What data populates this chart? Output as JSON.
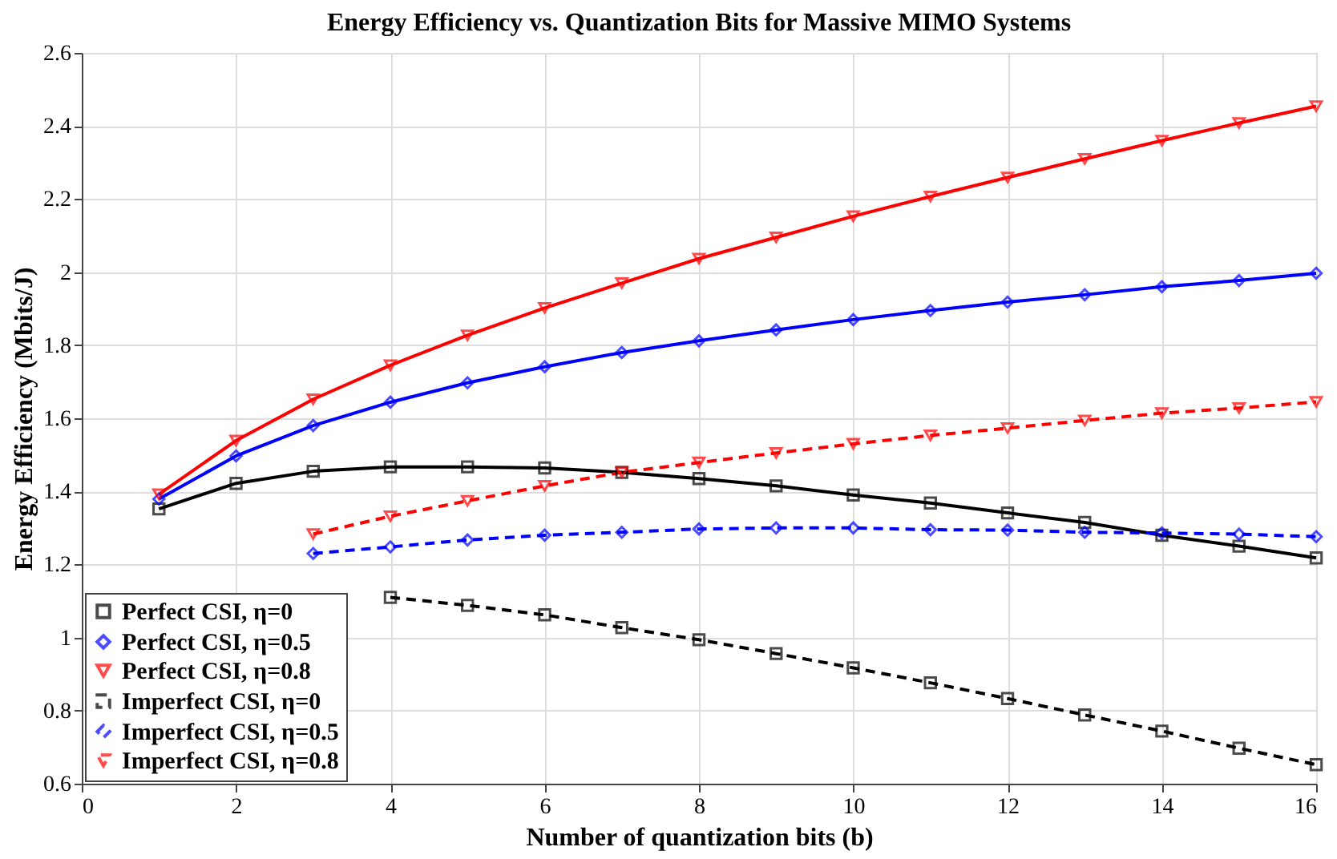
{
  "chart_data": {
    "type": "line",
    "title": "Energy Efficiency vs. Quantization Bits for Massive MIMO Systems",
    "xlabel": "Number of quantization bits (b)",
    "ylabel": "Energy Efficiency (Mbits/J)",
    "x": [
      1,
      2,
      3,
      4,
      5,
      6,
      7,
      8,
      9,
      10,
      11,
      12,
      13,
      14,
      15,
      16
    ],
    "xlim": [
      0,
      16
    ],
    "xticks": [
      0,
      2,
      4,
      6,
      8,
      10,
      12,
      14,
      16
    ],
    "ylim": [
      0.6,
      2.6
    ],
    "yticks": [
      0.6,
      0.8,
      1,
      1.2,
      1.4,
      1.6,
      1.8,
      2,
      2.2,
      2.4,
      2.6
    ],
    "grid": true,
    "legend": "bottom left",
    "series": [
      {
        "name": "Perfect CSI, η=0",
        "color": "#000000",
        "marker": "square",
        "line_style": "solid",
        "values": [
          1.352,
          1.422,
          1.455,
          1.467,
          1.467,
          1.464,
          1.452,
          1.435,
          1.415,
          1.39,
          1.368,
          1.341,
          1.315,
          1.28,
          1.25,
          1.218
        ]
      },
      {
        "name": "Perfect CSI, η=0.5",
        "color": "#0000ff",
        "marker": "diamond",
        "line_style": "solid",
        "values": [
          1.379,
          1.497,
          1.58,
          1.644,
          1.697,
          1.741,
          1.78,
          1.812,
          1.842,
          1.87,
          1.895,
          1.918,
          1.938,
          1.96,
          1.977,
          1.997
        ]
      },
      {
        "name": "Perfect CSI, η=0.8",
        "color": "#ff0000",
        "marker": "triangle",
        "line_style": "solid",
        "values": [
          1.392,
          1.539,
          1.652,
          1.745,
          1.827,
          1.902,
          1.97,
          2.037,
          2.095,
          2.153,
          2.207,
          2.259,
          2.31,
          2.36,
          2.408,
          2.454
        ]
      },
      {
        "name": "Imperfect CSI, η=0",
        "color": "#000000",
        "marker": "square",
        "line_style": "dashed",
        "values": [
          null,
          null,
          null,
          1.11,
          1.088,
          1.062,
          1.027,
          0.994,
          0.956,
          0.917,
          0.876,
          0.833,
          0.788,
          0.744,
          0.697,
          0.652
        ]
      },
      {
        "name": "Imperfect CSI, η=0.5",
        "color": "#0000ff",
        "marker": "diamond",
        "line_style": "dashed",
        "values": [
          null,
          null,
          1.23,
          1.248,
          1.267,
          1.28,
          1.288,
          1.297,
          1.3,
          1.3,
          1.295,
          1.294,
          1.288,
          1.286,
          1.283,
          1.276
        ]
      },
      {
        "name": "Imperfect CSI, η=0.8",
        "color": "#ff0000",
        "marker": "triangle",
        "line_style": "dashed",
        "values": [
          null,
          null,
          1.283,
          1.332,
          1.374,
          1.415,
          1.452,
          1.479,
          1.505,
          1.53,
          1.553,
          1.573,
          1.594,
          1.614,
          1.628,
          1.645
        ]
      }
    ]
  }
}
